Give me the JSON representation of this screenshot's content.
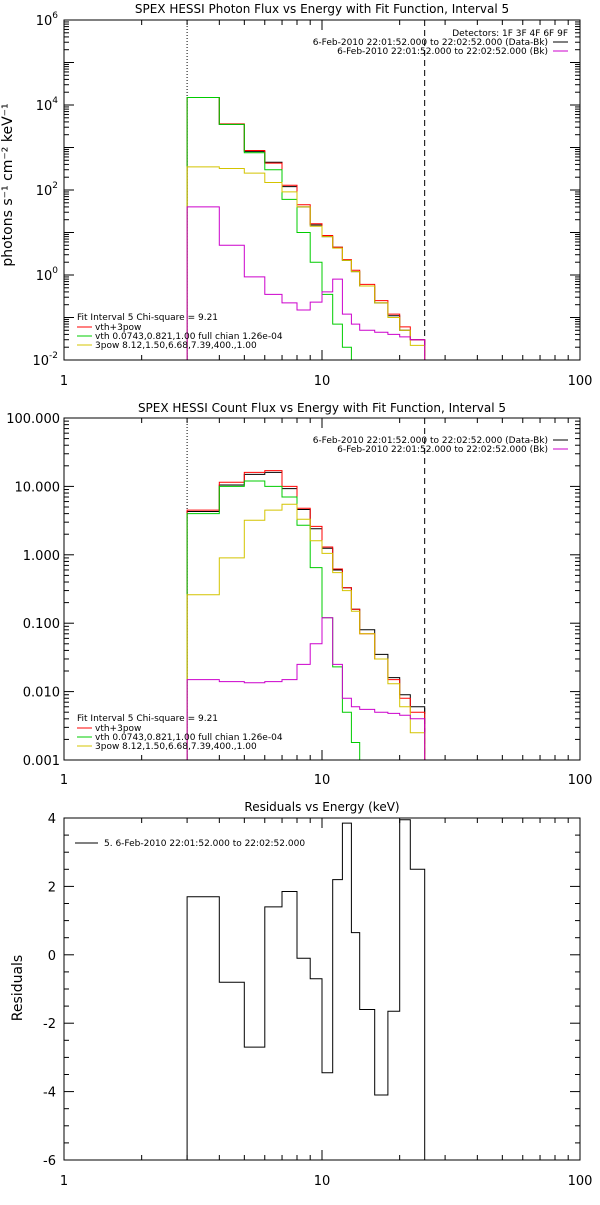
{
  "chart_data": [
    {
      "type": "line",
      "title": "SPEX HESSI Photon Flux vs Energy with Fit Function, Interval 5",
      "ylabel": "photons s⁻¹ cm⁻² keV⁻¹",
      "xlabel": "",
      "x_scale": "log",
      "y_scale": "log",
      "xlim": [
        1,
        100
      ],
      "ylim": [
        0.01,
        1000000
      ],
      "x_ticks": [
        "1",
        "10",
        "100"
      ],
      "y_ticks": [
        {
          "value": 0.01,
          "base": "10",
          "exp": "-2"
        },
        {
          "value": 1,
          "base": "10",
          "exp": "0"
        },
        {
          "value": 100,
          "base": "10",
          "exp": "2"
        },
        {
          "value": 10000,
          "base": "10",
          "exp": "4"
        },
        {
          "value": 1000000,
          "base": "10",
          "exp": "6"
        }
      ],
      "vlines": [
        {
          "x": 3,
          "style": "dotted"
        },
        {
          "x": 25,
          "style": "dashed"
        }
      ],
      "edges": [
        3,
        4,
        5,
        6,
        7,
        8,
        9,
        10,
        11,
        12,
        13,
        14,
        16,
        18,
        20,
        22,
        25
      ],
      "detectors": "Detectors: 1F 3F 4F 6F 9F",
      "legend_right": [
        {
          "label": "6-Feb-2010 22:01:52.000 to 22:02:52.000 (Data-Bk)",
          "color": "#000000"
        },
        {
          "label": "6-Feb-2010 22:01:52.000 to 22:02:52.000 (Bk)",
          "color": "#cc00cc"
        }
      ],
      "fit_text": "Fit Interval 5   Chi-square = 9.21",
      "legend_left": [
        {
          "label": "vth+3pow",
          "color": "#ff0000"
        },
        {
          "label": "vth 0.0743,0.821,1.00  full chian 1.26e-04",
          "color": "#00cc00"
        },
        {
          "label": "3pow 8.12,1.50,6.68,7.39,400.,1.00",
          "color": "#d4c400"
        }
      ],
      "series": [
        {
          "name": "6-Feb-2010 22:01:52.000 to 22:02:52.000 (Data-Bk)",
          "color": "#000000",
          "values": [
            15000,
            3500,
            800,
            450,
            120,
            40,
            15,
            8,
            4.5,
            2.2,
            1.2,
            0.55,
            0.22,
            0.11,
            0.05,
            0.03
          ]
        },
        {
          "name": "vth+3pow",
          "color": "#ff0000",
          "values": [
            15000,
            3600,
            850,
            430,
            130,
            45,
            16,
            8.5,
            4.5,
            2.3,
            1.3,
            0.6,
            0.25,
            0.12,
            0.06,
            0.03
          ]
        },
        {
          "name": "vth",
          "color": "#00cc00",
          "values": [
            15000,
            3500,
            750,
            300,
            60,
            10,
            2,
            0.35,
            0.07,
            0.02,
            0.008
          ]
        },
        {
          "name": "3pow",
          "color": "#d4c400",
          "values": [
            350,
            320,
            250,
            150,
            90,
            40,
            14,
            8,
            4.3,
            2.2,
            1.2,
            0.55,
            0.22,
            0.1,
            0.05,
            0.022
          ]
        },
        {
          "name": "6-Feb-2010 22:01:52.000 to 22:02:52.000 (Bk)",
          "color": "#cc00cc",
          "values": [
            40,
            5,
            0.9,
            0.35,
            0.22,
            0.15,
            0.23,
            0.4,
            0.8,
            0.12,
            0.07,
            0.05,
            0.045,
            0.04,
            0.035,
            0.03
          ]
        }
      ]
    },
    {
      "type": "line",
      "title": "SPEX HESSI Count Flux vs Energy with Fit Function, Interval 5",
      "xlabel": "",
      "ylabel": "",
      "x_scale": "log",
      "y_scale": "log",
      "xlim": [
        1,
        100
      ],
      "ylim": [
        0.001,
        100
      ],
      "x_ticks": [
        "1",
        "10",
        "100"
      ],
      "y_ticks": [
        {
          "value": 0.001,
          "label": "0.001"
        },
        {
          "value": 0.01,
          "label": "0.010"
        },
        {
          "value": 0.1,
          "label": "0.100"
        },
        {
          "value": 1,
          "label": "1.000"
        },
        {
          "value": 10,
          "label": "10.000"
        },
        {
          "value": 100,
          "label": "100.000"
        }
      ],
      "vlines": [
        {
          "x": 3,
          "style": "dotted"
        },
        {
          "x": 25,
          "style": "dashed"
        }
      ],
      "edges": [
        3,
        4,
        5,
        6,
        7,
        8,
        9,
        10,
        11,
        12,
        13,
        14,
        16,
        18,
        20,
        22,
        25
      ],
      "legend_right": [
        {
          "label": "6-Feb-2010 22:01:52.000 to 22:02:52.000 (Data-Bk)",
          "color": "#000000"
        },
        {
          "label": "6-Feb-2010 22:01:52.000 to 22:02:52.000 (Bk)",
          "color": "#cc00cc"
        }
      ],
      "fit_text": "Fit Interval 5   Chi-square = 9.21",
      "legend_left": [
        {
          "label": "vth+3pow",
          "color": "#ff0000"
        },
        {
          "label": "vth 0.0743,0.821,1.00  full chian 1.26e-04",
          "color": "#00cc00"
        },
        {
          "label": "3pow 8.12,1.50,6.68,7.39,400.,1.00",
          "color": "#d4c400"
        }
      ],
      "series": [
        {
          "name": "6-Feb-2010 22:01:52.000 to 22:02:52.000 (Data-Bk)",
          "color": "#000000",
          "values": [
            4.3,
            10.5,
            15,
            16,
            9.3,
            4.6,
            2.4,
            1.25,
            0.6,
            0.33,
            0.16,
            0.08,
            0.035,
            0.016,
            0.009,
            0.006
          ]
        },
        {
          "name": "vth+3pow",
          "color": "#ff0000",
          "values": [
            4.5,
            11.5,
            16,
            17,
            10,
            4.8,
            2.6,
            1.3,
            0.62,
            0.33,
            0.16,
            0.07,
            0.03,
            0.015,
            0.008,
            0.005
          ]
        },
        {
          "name": "vth",
          "color": "#00cc00",
          "values": [
            4,
            10,
            12,
            10,
            7,
            2.7,
            0.65,
            0.12,
            0.023,
            0.005,
            0.0018
          ]
        },
        {
          "name": "3pow",
          "color": "#d4c400",
          "values": [
            0.26,
            0.9,
            3.2,
            4.5,
            5.5,
            3.3,
            1.6,
            1.05,
            0.55,
            0.3,
            0.15,
            0.07,
            0.03,
            0.013,
            0.006,
            0.0025
          ]
        },
        {
          "name": "6-Feb-2010 22:01:52.000 to 22:02:52.000 (Bk)",
          "color": "#cc00cc",
          "values": [
            0.015,
            0.014,
            0.0135,
            0.014,
            0.015,
            0.025,
            0.05,
            0.12,
            0.025,
            0.008,
            0.006,
            0.0055,
            0.005,
            0.0048,
            0.0045,
            0.004
          ]
        }
      ]
    },
    {
      "type": "line",
      "title": "Residuals vs Energy (keV)",
      "ylabel": "Residuals",
      "xlabel": "",
      "x_scale": "log",
      "y_scale": "linear",
      "xlim": [
        1,
        100
      ],
      "ylim": [
        -6,
        4
      ],
      "x_ticks": [
        "1",
        "10",
        "100"
      ],
      "y_ticks": [
        "-6",
        "-4",
        "-2",
        "0",
        "2",
        "4"
      ],
      "legend": [
        {
          "label": "5.  6-Feb-2010 22:01:52.000 to 22:02:52.000",
          "color": "#000000"
        }
      ],
      "edges": [
        3,
        4,
        5,
        6,
        7,
        8,
        9,
        10,
        11,
        12,
        13,
        14,
        16,
        18,
        20,
        22,
        25
      ],
      "series": [
        {
          "name": "5.  6-Feb-2010 22:01:52.000 to 22:02:52.000",
          "color": "#000000",
          "values": [
            1.7,
            -0.8,
            -2.7,
            1.4,
            1.85,
            -0.1,
            -0.7,
            -3.45,
            2.2,
            3.85,
            0.65,
            -1.6,
            -4.1,
            -1.65,
            3.95,
            2.5
          ]
        }
      ]
    }
  ]
}
